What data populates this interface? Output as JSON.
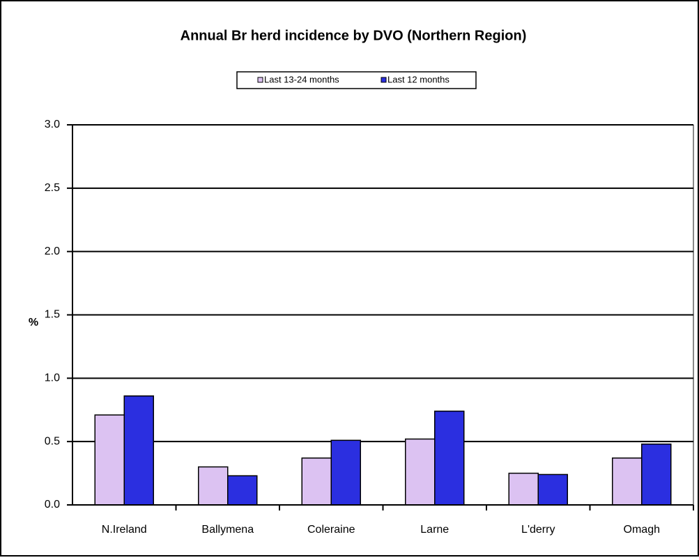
{
  "chart_data": {
    "type": "bar",
    "title": "Annual Br herd incidence by DVO (Northern Region)",
    "y_label": "%",
    "categories": [
      "N.Ireland",
      "Ballymena",
      "Coleraine",
      "Larne",
      "L'derry",
      "Omagh"
    ],
    "series": [
      {
        "name": "Last 13-24 months",
        "color": "#dcc2f2",
        "values": [
          0.71,
          0.3,
          0.37,
          0.52,
          0.25,
          0.37
        ]
      },
      {
        "name": "Last 12 months",
        "color": "#2b2fe0",
        "values": [
          0.86,
          0.23,
          0.51,
          0.74,
          0.24,
          0.48
        ]
      }
    ],
    "ylim": [
      0,
      3
    ],
    "yticks": [
      {
        "value": 0,
        "label": "0.0"
      },
      0.5,
      {
        "value": 1,
        "label": "1.0"
      },
      1.5,
      {
        "value": 2,
        "label": "2.0"
      },
      2.5,
      {
        "value": 3,
        "label": "3.0"
      }
    ],
    "grid": true
  }
}
